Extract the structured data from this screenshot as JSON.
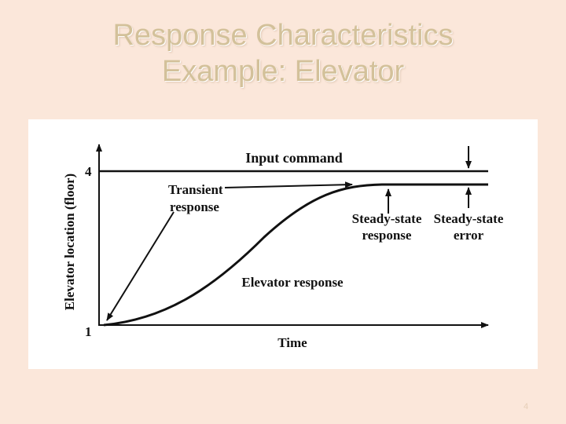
{
  "slide": {
    "title_line1": "Response Characteristics",
    "title_line2": "Example: Elevator",
    "page_number": "4",
    "colors": {
      "background": "#fbe7da",
      "title": "#d3c19a",
      "figure_bg": "#ffffff",
      "ink": "#111111"
    }
  },
  "diagram": {
    "y_axis_label": "Elevator location (floor)",
    "x_axis_label": "Time",
    "y_tick_top": "4",
    "y_tick_bottom": "1",
    "input_command": "Input command",
    "transient_line1": "Transient",
    "transient_line2": "response",
    "steady_state_response_line1": "Steady-state",
    "steady_state_response_line2": "response",
    "steady_state_error_line1": "Steady-state",
    "steady_state_error_line2": "error",
    "elevator_response": "Elevator response"
  }
}
